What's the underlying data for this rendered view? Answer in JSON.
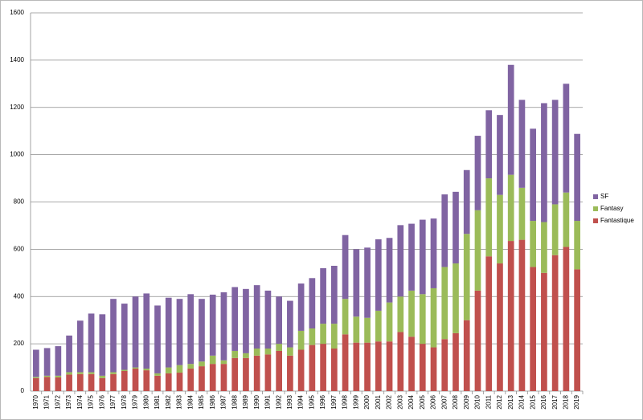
{
  "chart_data": {
    "type": "stacked-bar",
    "categories": [
      "1970",
      "1971",
      "1972",
      "1973",
      "1974",
      "1975",
      "1976",
      "1977",
      "1978",
      "1979",
      "1980",
      "1981",
      "1982",
      "1983",
      "1984",
      "1985",
      "1986",
      "1987",
      "1988",
      "1989",
      "1990",
      "1991",
      "1992",
      "1993",
      "1994",
      "1995",
      "1996",
      "1997",
      "1998",
      "1999",
      "2000",
      "2001",
      "2002",
      "2003",
      "2004",
      "2005",
      "2006",
      "2007",
      "2008",
      "2009",
      "2010",
      "2011",
      "2012",
      "2013",
      "2014",
      "2015",
      "2016",
      "2017",
      "2018",
      "2019"
    ],
    "series": [
      {
        "name": "Fantastique",
        "color": "#c0504d",
        "values": [
          55,
          60,
          58,
          70,
          72,
          72,
          55,
          72,
          85,
          95,
          88,
          65,
          75,
          78,
          95,
          105,
          115,
          115,
          140,
          140,
          150,
          155,
          170,
          150,
          175,
          195,
          200,
          180,
          240,
          205,
          205,
          210,
          210,
          250,
          230,
          200,
          185,
          220,
          245,
          300,
          425,
          570,
          540,
          635,
          640,
          525,
          500,
          575,
          610,
          515
        ]
      },
      {
        "name": "Fantasy",
        "color": "#9bbb59",
        "values": [
          5,
          5,
          7,
          10,
          8,
          8,
          10,
          8,
          5,
          5,
          7,
          10,
          25,
          32,
          20,
          20,
          35,
          15,
          30,
          20,
          30,
          25,
          30,
          35,
          80,
          70,
          85,
          105,
          150,
          110,
          105,
          130,
          165,
          150,
          195,
          210,
          250,
          305,
          295,
          365,
          340,
          330,
          290,
          280,
          220,
          195,
          215,
          215,
          230,
          205
        ]
      },
      {
        "name": "SF",
        "color": "#8064a2",
        "values": [
          115,
          117,
          125,
          155,
          218,
          248,
          260,
          310,
          280,
          300,
          318,
          287,
          295,
          280,
          295,
          265,
          258,
          288,
          270,
          272,
          268,
          245,
          200,
          197,
          200,
          213,
          235,
          245,
          270,
          285,
          297,
          302,
          273,
          302,
          283,
          315,
          295,
          307,
          303,
          270,
          315,
          288,
          338,
          465,
          372,
          390,
          503,
          442,
          460,
          368
        ]
      }
    ],
    "ylim": [
      0,
      1600
    ],
    "yticks": [
      0,
      200,
      400,
      600,
      800,
      1000,
      1200,
      1400,
      1600
    ],
    "grid": true,
    "legend": "right"
  }
}
